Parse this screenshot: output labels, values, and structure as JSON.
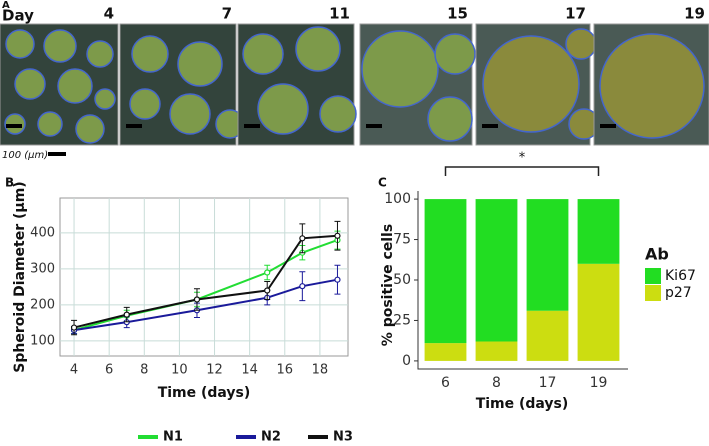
{
  "panel_a": {
    "label": "A",
    "day_label": "Day",
    "days": [
      "4",
      "7",
      "11",
      "15",
      "17",
      "19"
    ],
    "scale_label": "100 (µm)"
  },
  "chart_data": [
    {
      "type": "line",
      "panel_label": "B",
      "x_label": "Time (days)",
      "y_label": "Spheroid Diameter (µm)",
      "x": [
        4,
        7,
        11,
        15,
        17,
        19
      ],
      "series": [
        {
          "name": "N1",
          "color": "#22dd33",
          "values": [
            130,
            170,
            215,
            290,
            345,
            380
          ],
          "errors": [
            10,
            15,
            20,
            20,
            20,
            25
          ]
        },
        {
          "name": "N2",
          "color": "#1a1a9a",
          "values": [
            130,
            152,
            185,
            220,
            252,
            270
          ],
          "errors": [
            10,
            15,
            20,
            20,
            40,
            40
          ]
        },
        {
          "name": "N3",
          "color": "#111111",
          "values": [
            137,
            173,
            215,
            240,
            385,
            392
          ],
          "errors": [
            20,
            20,
            30,
            25,
            40,
            40
          ]
        }
      ],
      "xlim": [
        3.2,
        19.6
      ],
      "xticks": [
        4,
        6,
        8,
        10,
        12,
        14,
        16,
        18
      ],
      "ylim": [
        58,
        497
      ],
      "yticks": [
        100,
        200,
        300,
        400
      ],
      "grid": true
    },
    {
      "type": "stacked_bar",
      "panel_label": "C",
      "x_label": "Time (days)",
      "y_label": "% positive cells",
      "categories": [
        "6",
        "8",
        "17",
        "19"
      ],
      "legend_title": "Ab",
      "series": [
        {
          "name": "Ki67",
          "color": "#22dd22",
          "values": [
            89,
            88,
            69,
            40
          ]
        },
        {
          "name": "p27",
          "color": "#ccdd11",
          "values": [
            11,
            12,
            31,
            60
          ]
        }
      ],
      "ylim": [
        -5,
        105
      ],
      "yticks": [
        0,
        25,
        50,
        75,
        100
      ],
      "significance": {
        "from": 0,
        "to": 3,
        "label": "*"
      }
    }
  ]
}
